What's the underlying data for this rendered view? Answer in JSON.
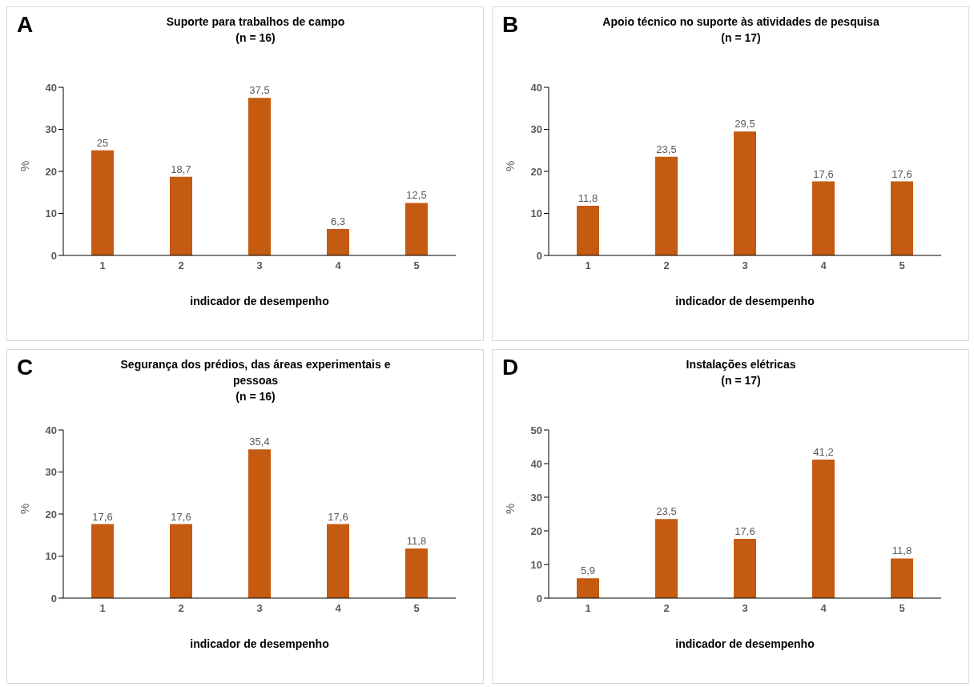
{
  "chart_data": [
    {
      "type": "bar",
      "annotations": [
        "A"
      ],
      "title": "Suporte para trabalhos de campo",
      "subtitle": "(n = 16)",
      "xlabel": "indicador de desempenho",
      "ylabel": "%",
      "categories": [
        "1",
        "2",
        "3",
        "4",
        "5"
      ],
      "values": [
        25,
        18.7,
        37.5,
        6.3,
        12.5
      ],
      "value_labels": [
        "25",
        "18,7",
        "37,5",
        "6,3",
        "12,5"
      ],
      "color": "#c55a11",
      "ylim": [
        0,
        40
      ],
      "yticks": [
        0,
        10,
        20,
        30,
        40
      ],
      "grid": false,
      "legend": false
    },
    {
      "type": "bar",
      "annotations": [
        "B"
      ],
      "title": "Apoio técnico no suporte às atividades de pesquisa",
      "subtitle": "(n = 17)",
      "xlabel": "indicador de desempenho",
      "ylabel": "%",
      "categories": [
        "1",
        "2",
        "3",
        "4",
        "5"
      ],
      "values": [
        11.8,
        23.5,
        29.5,
        17.6,
        17.6
      ],
      "value_labels": [
        "11,8",
        "23,5",
        "29,5",
        "17,6",
        "17,6"
      ],
      "color": "#c55a11",
      "ylim": [
        0,
        40
      ],
      "yticks": [
        0,
        10,
        20,
        30,
        40
      ],
      "grid": false,
      "legend": false
    },
    {
      "type": "bar",
      "annotations": [
        "C"
      ],
      "title": "Segurança dos prédios, das áreas experimentais e pessoas",
      "subtitle": "(n = 16)",
      "xlabel": "indicador de desempenho",
      "ylabel": "%",
      "categories": [
        "1",
        "2",
        "3",
        "4",
        "5"
      ],
      "values": [
        17.6,
        17.6,
        35.4,
        17.6,
        11.8
      ],
      "value_labels": [
        "17,6",
        "17,6",
        "35,4",
        "17,6",
        "11,8"
      ],
      "color": "#c55a11",
      "ylim": [
        0,
        40
      ],
      "yticks": [
        0,
        10,
        20,
        30,
        40
      ],
      "grid": false,
      "legend": false
    },
    {
      "type": "bar",
      "annotations": [
        "D"
      ],
      "title": "Instalações elétricas",
      "subtitle": "(n = 17)",
      "xlabel": "indicador de desempenho",
      "ylabel": "%",
      "categories": [
        "1",
        "2",
        "3",
        "4",
        "5"
      ],
      "values": [
        5.9,
        23.5,
        17.6,
        41.2,
        11.8
      ],
      "value_labels": [
        "5,9",
        "23,5",
        "17,6",
        "41,2",
        "11,8"
      ],
      "color": "#c55a11",
      "ylim": [
        0,
        50
      ],
      "yticks": [
        0,
        10,
        20,
        30,
        40,
        50
      ],
      "grid": false,
      "legend": false
    }
  ]
}
